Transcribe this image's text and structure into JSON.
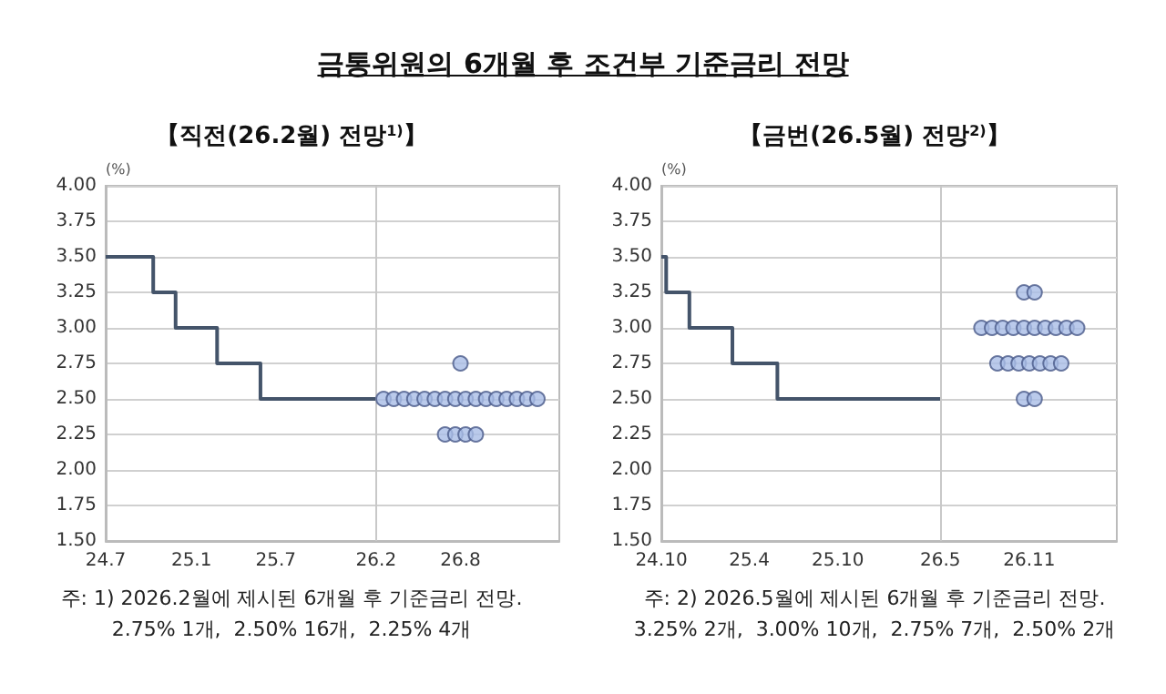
{
  "chart_data": [
    {
      "type": "scatter",
      "title": "금통위원의 6개월 후 조건부 기준금리 전망",
      "subtitle": "【직전(26.2월) 전망$^{1)}$】",
      "ylabel": "(%)",
      "xlim": [
        "2024-07-01",
        "2027-03-01"
      ],
      "xticks": [
        {
          "value": "2024-07",
          "label": "24.7"
        },
        {
          "value": "2025-01",
          "label": "25.1"
        },
        {
          "value": "2025-07",
          "label": "25.7"
        },
        {
          "value": "2026-02",
          "label": "26.2"
        },
        {
          "value": "2026-08",
          "label": "26.8"
        }
      ],
      "ylim": [
        1.5,
        4
      ],
      "yticks": [
        {
          "value": 1.5,
          "label": "1.50"
        },
        {
          "value": 1.75,
          "label": "1.75"
        },
        {
          "value": 2,
          "label": "2.00"
        },
        {
          "value": 2.25,
          "label": "2.25"
        },
        {
          "value": 2.5,
          "label": "2.50"
        },
        {
          "value": 2.75,
          "label": "2.75"
        },
        {
          "value": 3,
          "label": "3.00"
        },
        {
          "value": 3.25,
          "label": "3.25"
        },
        {
          "value": 3.5,
          "label": "3.50"
        },
        {
          "value": 3.75,
          "label": "3.75"
        },
        {
          "value": 4,
          "label": "4.00"
        }
      ],
      "grid": "y",
      "ref_lines": [
        {
          "axis": "x",
          "value": "2026-02-01",
          "label": null,
          "color": "#c8c8c8"
        }
      ],
      "series": [
        {
          "type": "step",
          "color": "#44546a",
          "marker": "none",
          "x": [
            "2024-07-01",
            "2024-10-11",
            "2024-11-28",
            "2025-02-25",
            "2025-05-29",
            "2026-02-01"
          ],
          "values": [
            3.5,
            3.25,
            3.0,
            2.75,
            2.5,
            2.5
          ]
        },
        {
          "color": "#a9bde6",
          "marker": "circle",
          "x": [
            "2026-08-01",
            "2026-02-17",
            "2026-03-11",
            "2026-04-02",
            "2026-04-24",
            "2026-05-16",
            "2026-06-07",
            "2026-06-29",
            "2026-07-21",
            "2026-08-12",
            "2026-09-03",
            "2026-09-25",
            "2026-10-17",
            "2026-11-08",
            "2026-11-30",
            "2026-12-22",
            "2027-01-13",
            "2026-06-29",
            "2026-07-21",
            "2026-08-12",
            "2026-09-03"
          ],
          "values": [
            2.75,
            2.5,
            2.5,
            2.5,
            2.5,
            2.5,
            2.5,
            2.5,
            2.5,
            2.5,
            2.5,
            2.5,
            2.5,
            2.5,
            2.5,
            2.5,
            2.5,
            2.25,
            2.25,
            2.25,
            2.25
          ]
        }
      ],
      "annotations": [
        "주: 1) 2026.2월에 제시된 6개월 후 기준금리 전망.",
        "2.75% 1개,  2.50% 16개,  2.25% 4개"
      ]
    },
    {
      "type": "scatter",
      "subtitle": "【금번(26.5월) 전망$^{2)}$】",
      "ylabel": "(%)",
      "xlim": [
        "2024-10-01",
        "2027-05-01"
      ],
      "xticks": [
        {
          "value": "2024-10",
          "label": "24.10"
        },
        {
          "value": "2025-04",
          "label": "25.4"
        },
        {
          "value": "2025-10",
          "label": "25.10"
        },
        {
          "value": "2026-05",
          "label": "26.5"
        },
        {
          "value": "2026-11",
          "label": "26.11"
        }
      ],
      "ylim": [
        1.5,
        4
      ],
      "yticks": [
        {
          "value": 1.5,
          "label": "1.50"
        },
        {
          "value": 1.75,
          "label": "1.75"
        },
        {
          "value": 2,
          "label": "2.00"
        },
        {
          "value": 2.25,
          "label": "2.25"
        },
        {
          "value": 2.5,
          "label": "2.50"
        },
        {
          "value": 2.75,
          "label": "2.75"
        },
        {
          "value": 3,
          "label": "3.00"
        },
        {
          "value": 3.25,
          "label": "3.25"
        },
        {
          "value": 3.5,
          "label": "3.50"
        },
        {
          "value": 3.75,
          "label": "3.75"
        },
        {
          "value": 4,
          "label": "4.00"
        }
      ],
      "grid": "y",
      "ref_lines": [
        {
          "axis": "x",
          "value": "2026-05-01",
          "label": null,
          "color": "#c8c8c8"
        }
      ],
      "series": [
        {
          "type": "step",
          "color": "#44546a",
          "marker": "none",
          "x": [
            "2024-10-01",
            "2024-10-11",
            "2024-11-28",
            "2025-02-25",
            "2025-05-29",
            "2026-05-01"
          ],
          "values": [
            3.5,
            3.25,
            3.0,
            2.75,
            2.5,
            2.5
          ]
        },
        {
          "color": "#a9bde6",
          "marker": "circle",
          "x": [
            "2026-10-21",
            "2026-11-12",
            "2026-07-25",
            "2026-08-16",
            "2026-09-07",
            "2026-09-29",
            "2026-10-21",
            "2026-11-12",
            "2026-12-04",
            "2026-12-26",
            "2027-01-17",
            "2027-02-08",
            "2026-08-27",
            "2026-09-18",
            "2026-10-10",
            "2026-11-01",
            "2026-11-23",
            "2026-12-15",
            "2027-01-06",
            "2026-10-21",
            "2026-11-12"
          ],
          "values": [
            3.25,
            3.25,
            3,
            3,
            3,
            3,
            3,
            3,
            3,
            3,
            3,
            3,
            2.75,
            2.75,
            2.75,
            2.75,
            2.75,
            2.75,
            2.75,
            2.5,
            2.5
          ]
        }
      ],
      "annotations": [
        "주: 2) 2026.5월에 제시된 6개월 후 기준금리 전망.",
        "3.25% 2개,  3.00% 10개,  2.75% 7개,  2.50% 2개"
      ]
    }
  ]
}
